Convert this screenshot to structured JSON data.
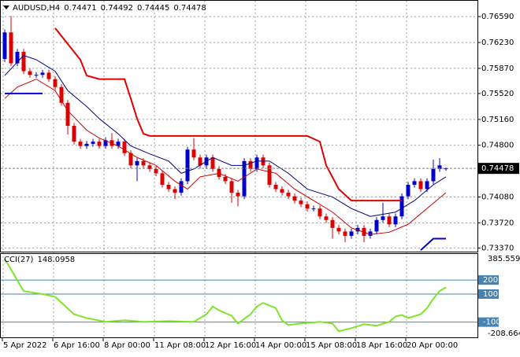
{
  "chart_data": [
    {
      "type": "candlestick",
      "symbol": "AUDUSD,H4",
      "categories": [
        "5 Apr 2022",
        null,
        null,
        null,
        null,
        null,
        null,
        null,
        "6 Apr 16:00",
        null,
        null,
        null,
        null,
        null,
        null,
        null,
        "8 Apr 00:00",
        null,
        null,
        null,
        null,
        null,
        null,
        null,
        "11 Apr 08:00",
        null,
        null,
        null,
        null,
        null,
        null,
        null,
        "12 Apr 16:00",
        null,
        null,
        null,
        null,
        null,
        null,
        null,
        "14 Apr 00:00",
        null,
        null,
        null,
        null,
        null,
        null,
        null,
        "15 Apr 08:00",
        null,
        null,
        null,
        null,
        null,
        null,
        null,
        "18 Apr 16:00",
        null,
        null,
        null,
        null,
        null,
        null,
        null,
        "20 Apr 00:00",
        null,
        null,
        null,
        null,
        null,
        null
      ],
      "open": [
        0.76,
        0.7637,
        0.7594,
        0.761,
        0.7583,
        0.7578,
        0.7578,
        0.7581,
        0.7572,
        0.7561,
        0.7539,
        0.7507,
        0.7485,
        0.7479,
        0.7482,
        0.7485,
        0.7479,
        0.7487,
        0.7479,
        0.7485,
        0.7469,
        0.7452,
        0.7458,
        0.7452,
        0.7447,
        0.7441,
        0.7425,
        0.7419,
        0.7414,
        0.743,
        0.7474,
        0.7463,
        0.7452,
        0.7463,
        0.7447,
        0.7436,
        0.743,
        0.7414,
        0.7409,
        0.7458,
        0.7447,
        0.7463,
        0.7452,
        0.7425,
        0.7419,
        0.7414,
        0.7409,
        0.7403,
        0.7398,
        0.7392,
        0.7392,
        0.7381,
        0.7376,
        0.7365,
        0.736,
        0.7354,
        0.736,
        0.7365,
        0.7354,
        0.736,
        0.7376,
        0.7381,
        0.737,
        0.7381,
        0.7409,
        0.7425,
        0.743,
        0.7419,
        0.743,
        0.7447,
        0.74471
      ],
      "high": [
        0.7641,
        0.766,
        0.7614,
        0.7614,
        0.7587,
        0.7582,
        0.7585,
        0.7585,
        0.7576,
        0.7565,
        0.7543,
        0.7511,
        0.7489,
        0.7486,
        0.7489,
        0.7489,
        0.7491,
        0.7497,
        0.7489,
        0.7489,
        0.7473,
        0.7462,
        0.7462,
        0.7456,
        0.7451,
        0.7445,
        0.7429,
        0.7423,
        0.7434,
        0.7478,
        0.749,
        0.7467,
        0.7467,
        0.7467,
        0.7451,
        0.744,
        0.7434,
        0.7418,
        0.7462,
        0.7462,
        0.7467,
        0.7467,
        0.7456,
        0.7429,
        0.7423,
        0.7418,
        0.7413,
        0.7407,
        0.7402,
        0.7396,
        0.7396,
        0.7385,
        0.738,
        0.7369,
        0.7364,
        0.7364,
        0.7369,
        0.7369,
        0.7364,
        0.738,
        0.74,
        0.7385,
        0.7385,
        0.7413,
        0.7429,
        0.7434,
        0.7434,
        0.7434,
        0.746,
        0.7462,
        0.74492
      ],
      "low": [
        0.7596,
        0.759,
        0.759,
        0.7579,
        0.7574,
        0.7574,
        0.7574,
        0.7568,
        0.7557,
        0.7535,
        0.7495,
        0.7481,
        0.7475,
        0.7475,
        0.7478,
        0.7475,
        0.7475,
        0.7475,
        0.7475,
        0.7465,
        0.7448,
        0.743,
        0.7448,
        0.7443,
        0.7437,
        0.7421,
        0.7415,
        0.7405,
        0.741,
        0.7426,
        0.7459,
        0.7448,
        0.7448,
        0.7443,
        0.7432,
        0.7426,
        0.74,
        0.7395,
        0.7405,
        0.7443,
        0.7443,
        0.7448,
        0.7421,
        0.7415,
        0.741,
        0.7405,
        0.7399,
        0.7394,
        0.7388,
        0.7388,
        0.7377,
        0.7372,
        0.735,
        0.7356,
        0.7345,
        0.735,
        0.7356,
        0.7345,
        0.735,
        0.7356,
        0.7372,
        0.7366,
        0.7366,
        0.7377,
        0.7405,
        0.7421,
        0.7415,
        0.7415,
        0.7426,
        0.7443,
        0.74445
      ],
      "close": [
        0.7637,
        0.7594,
        0.761,
        0.7583,
        0.7578,
        0.7578,
        0.7581,
        0.7572,
        0.7561,
        0.7539,
        0.7507,
        0.7485,
        0.7479,
        0.7482,
        0.7485,
        0.7479,
        0.7487,
        0.7479,
        0.7485,
        0.7469,
        0.7452,
        0.7458,
        0.7452,
        0.7447,
        0.7441,
        0.7425,
        0.7419,
        0.7414,
        0.743,
        0.7474,
        0.7463,
        0.7452,
        0.7463,
        0.7447,
        0.7436,
        0.743,
        0.7414,
        0.7409,
        0.7458,
        0.7447,
        0.7463,
        0.7452,
        0.7425,
        0.7419,
        0.7414,
        0.7409,
        0.7403,
        0.7398,
        0.7392,
        0.7392,
        0.7381,
        0.7376,
        0.7365,
        0.736,
        0.7354,
        0.736,
        0.7365,
        0.7354,
        0.736,
        0.7376,
        0.7381,
        0.737,
        0.7381,
        0.7409,
        0.7425,
        0.743,
        0.7419,
        0.743,
        0.7447,
        0.7452,
        0.74478
      ],
      "up_color": "#0000cc",
      "down_color": "#dd0000",
      "overlays": [
        {
          "color": "#000080",
          "width": 1,
          "x": [
            0,
            3,
            5,
            8,
            10,
            13,
            15,
            18,
            20,
            23,
            26,
            28,
            30,
            33,
            36,
            38,
            40,
            42,
            45,
            48,
            52,
            55,
            58,
            62,
            65,
            68,
            70
          ],
          "values": [
            0.7577,
            0.7605,
            0.7599,
            0.7583,
            0.7556,
            0.7534,
            0.7517,
            0.7496,
            0.7479,
            0.7468,
            0.7458,
            0.7441,
            0.7447,
            0.7463,
            0.7452,
            0.7452,
            0.7458,
            0.7458,
            0.7441,
            0.7419,
            0.7408,
            0.7392,
            0.7381,
            0.7387,
            0.7403,
            0.7425,
            0.7436
          ]
        },
        {
          "color": "#cc0000",
          "width": 1,
          "x": [
            0,
            2,
            5,
            8,
            10,
            13,
            15,
            18,
            21,
            24,
            27,
            29,
            31,
            34,
            37,
            40,
            43,
            46,
            49,
            52,
            55,
            58,
            61,
            64,
            67,
            70
          ],
          "values": [
            0.7545,
            0.7561,
            0.7572,
            0.7556,
            0.7528,
            0.7501,
            0.749,
            0.7479,
            0.7463,
            0.7452,
            0.743,
            0.7419,
            0.7436,
            0.7441,
            0.743,
            0.7447,
            0.7441,
            0.7419,
            0.7403,
            0.7387,
            0.7365,
            0.7356,
            0.7359,
            0.737,
            0.7392,
            0.7414
          ]
        },
        {
          "color": "#e00000",
          "width": 2,
          "x": [
            8,
            10,
            12,
            13,
            15,
            19,
            20,
            21,
            22,
            23,
            48,
            50,
            51,
            53,
            55,
            63
          ],
          "values": [
            0.7643,
            0.7621,
            0.7599,
            0.7577,
            0.7572,
            0.7572,
            0.7545,
            0.7517,
            0.7496,
            0.7493,
            0.7493,
            0.7485,
            0.7452,
            0.7419,
            0.7403,
            0.7403
          ]
        },
        {
          "color": "#0000cc",
          "width": 2,
          "x": [
            0,
            6,
            7,
            66,
            68,
            70
          ],
          "values": [
            0.7552,
            0.7552,
            null,
            0.7334,
            0.735,
            0.735
          ]
        }
      ],
      "ylim": [
        0.7332,
        0.7681
      ],
      "yticks": [
        {
          "value": 0.7659,
          "label": "0.76590"
        },
        {
          "value": 0.7623,
          "label": "0.76230"
        },
        {
          "value": 0.7587,
          "label": "0.75870"
        },
        {
          "value": 0.7552,
          "label": "0.75520"
        },
        {
          "value": 0.7516,
          "label": "0.75160"
        },
        {
          "value": 0.748,
          "label": "0.74800"
        },
        {
          "value": 0.7408,
          "label": "0.74080"
        },
        {
          "value": 0.7372,
          "label": "0.73720"
        },
        {
          "value": 0.7337,
          "label": "0.73370"
        }
      ],
      "grid": true
    },
    {
      "type": "line",
      "indicator": "CCI(27)",
      "color": "#7fe52a",
      "x": [
        0,
        3,
        6,
        8,
        11,
        13,
        16,
        19,
        22,
        26,
        30,
        32,
        33,
        34,
        36,
        37,
        39,
        40,
        41,
        43,
        44,
        45,
        47,
        50,
        52,
        53,
        55,
        57,
        59,
        61,
        62,
        63,
        64,
        66,
        67,
        68,
        69,
        70
      ],
      "values": [
        352,
        121,
        100,
        80,
        -44,
        -71,
        -98,
        -87,
        -98,
        -93,
        -98,
        -44,
        11,
        -16,
        -55,
        -110,
        -44,
        11,
        37,
        0,
        -88,
        -121,
        -110,
        -98,
        -110,
        -165,
        -143,
        -115,
        -126,
        -98,
        -60,
        -49,
        -71,
        -44,
        0,
        66,
        121,
        148.0958
      ],
      "ylim": [
        -208.6649,
        385.5598
      ],
      "yticks": [
        200,
        100,
        -100
      ],
      "level_color": "#4682b4"
    }
  ]
}
